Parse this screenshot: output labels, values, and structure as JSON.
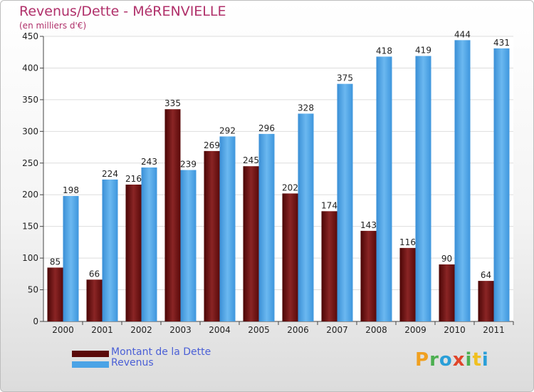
{
  "title": "Revenus/Dette - MéRENVIELLE",
  "subtitle": "(en milliers d'€)",
  "brand": {
    "letters": [
      "P",
      "r",
      "o",
      "x",
      "i",
      "t",
      "i"
    ],
    "colors": [
      "#f0a020",
      "#4caf50",
      "#2a9fd8",
      "#e0452a",
      "#4caf50",
      "#f0c020",
      "#2a9fd8"
    ]
  },
  "colors": {
    "debt": "#7a1a1a",
    "revenue": "#4aa3e6",
    "title": "#b0306a",
    "legend_text": "#4a5fd6"
  },
  "chart_data": {
    "type": "bar",
    "title": "Revenus/Dette - MéRENVIELLE",
    "subtitle": "(en milliers d'€)",
    "categories": [
      "2000",
      "2001",
      "2002",
      "2003",
      "2004",
      "2005",
      "2006",
      "2007",
      "2008",
      "2009",
      "2010",
      "2011"
    ],
    "series": [
      {
        "name": "Montant de la Dette",
        "values": [
          85,
          66,
          216,
          335,
          269,
          245,
          202,
          174,
          143,
          116,
          90,
          64
        ]
      },
      {
        "name": "Revenus",
        "values": [
          198,
          224,
          243,
          239,
          292,
          296,
          328,
          375,
          418,
          419,
          444,
          431
        ]
      }
    ],
    "ylim": [
      0,
      450
    ],
    "yticks": [
      0,
      50,
      100,
      150,
      200,
      250,
      300,
      350,
      400,
      450
    ],
    "grid": true,
    "legend": "bottom-left"
  }
}
